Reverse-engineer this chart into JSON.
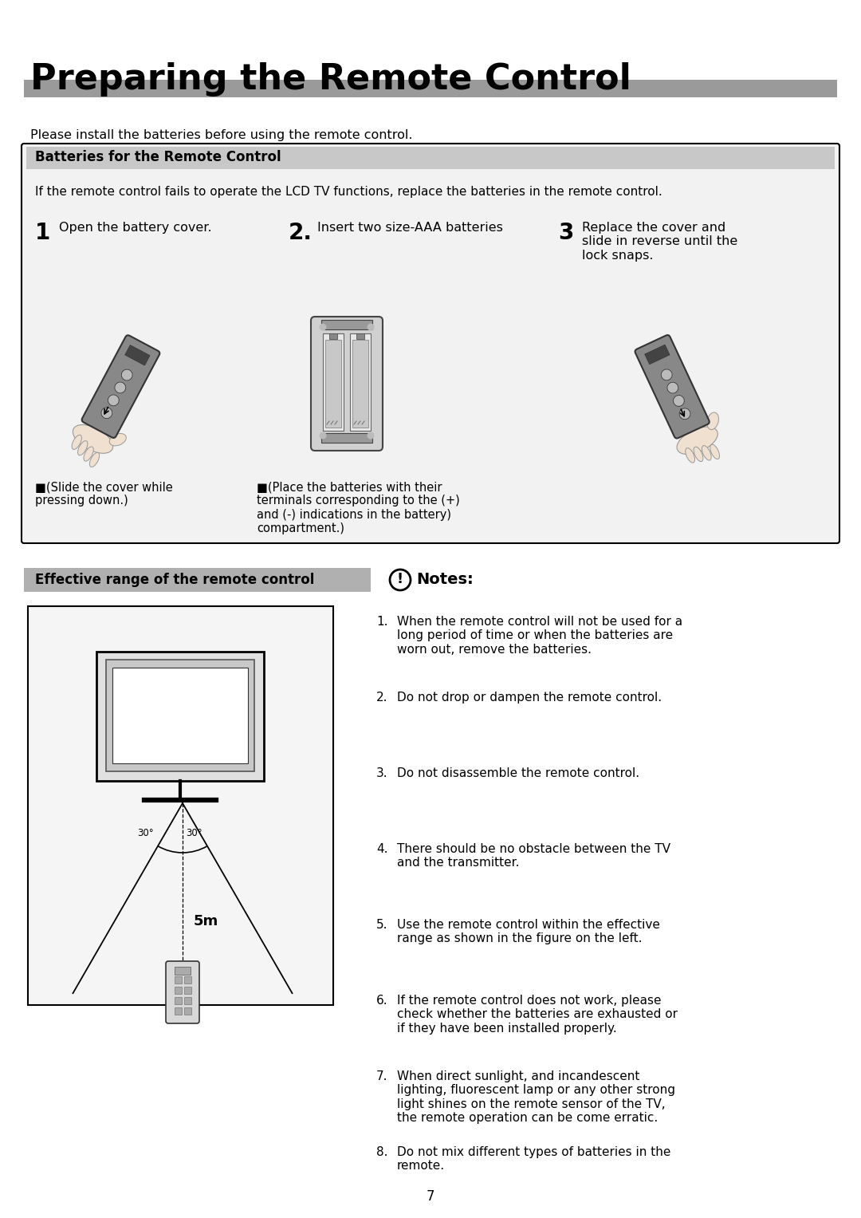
{
  "title": "Preparing the Remote Control",
  "gray_bar_color": "#9a9a9a",
  "bg_color": "#ffffff",
  "intro_text": "Please install the batteries before using the remote control.",
  "batteries_header": "Batteries for the Remote Control",
  "batteries_warning": "If the remote control fails to operate the LCD TV functions, replace the batteries in the remote control.",
  "step1_num": "1",
  "step1_label": "Open the battery cover.",
  "step2_num": "2.",
  "step2_label": "Insert two size-AAA batteries",
  "step3_num": "3",
  "step3_label": "Replace the cover and\nslide in reverse until the\nlock snaps.",
  "note1": "■(Slide the cover while\npressing down.)",
  "note2": "■(Place the batteries with their\nterminals corresponding to the (+)\nand (-) indications in the battery)\ncompartment.)",
  "effective_header": "Effective range of the remote control",
  "notes_title": "Notes:",
  "notes": [
    "When the remote control will not be used for a\nlong period of time or when the batteries are\nworn out, remove the batteries.",
    "Do not drop or dampen the remote control.",
    "Do not disassemble the remote control.",
    "There should be no obstacle between the TV\nand the transmitter.",
    "Use the remote control within the effective\nrange as shown in the figure on the left.",
    "If the remote control does not work, please\ncheck whether the batteries are exhausted or\nif they have been installed properly.",
    "When direct sunlight, and incandescent\nlighting, fluorescent lamp or any other strong\nlight shines on the remote sensor of the TV,\nthe remote operation can be come erratic.",
    "Do not mix different types of batteries in the\nremote."
  ],
  "page_number": "7",
  "distance_label": "5m",
  "angle_left": "30°",
  "angle_right": "30°"
}
